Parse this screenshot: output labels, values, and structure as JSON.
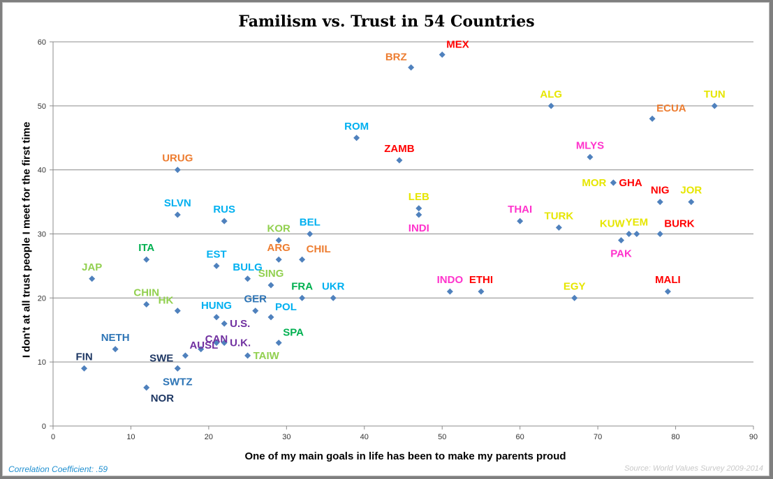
{
  "chart_data": {
    "type": "scatter",
    "title": "Familism vs. Trust in 54 Countries",
    "xlabel": "One of my main goals in life has been to make my parents proud",
    "ylabel": "I don't at all trust people I meet for the first time",
    "xlim": [
      0,
      90
    ],
    "ylim": [
      0,
      60
    ],
    "xticks": [
      0,
      10,
      20,
      30,
      40,
      50,
      60,
      70,
      80,
      90
    ],
    "yticks": [
      0,
      10,
      20,
      30,
      40,
      50,
      60
    ],
    "grid": "horizontal",
    "marker_color": "#4f81bd",
    "points": [
      {
        "label": "FIN",
        "x": 4,
        "y": 9,
        "color": "#1f3864",
        "pos": "above"
      },
      {
        "label": "NETH",
        "x": 8,
        "y": 12,
        "color": "#2e75b6",
        "pos": "above"
      },
      {
        "label": "NOR",
        "x": 12,
        "y": 6,
        "color": "#1f3864",
        "pos": "below-right"
      },
      {
        "label": "JAP",
        "x": 5,
        "y": 23,
        "color": "#92d050",
        "pos": "above"
      },
      {
        "label": "ITA",
        "x": 12,
        "y": 26,
        "color": "#00b050",
        "pos": "above"
      },
      {
        "label": "CHIN",
        "x": 12,
        "y": 19,
        "color": "#92d050",
        "pos": "above"
      },
      {
        "label": "HK",
        "x": 16,
        "y": 18,
        "color": "#92d050",
        "pos": "above-left"
      },
      {
        "label": "URUG",
        "x": 16,
        "y": 40,
        "color": "#ed7d31",
        "pos": "above"
      },
      {
        "label": "SLVN",
        "x": 16,
        "y": 33,
        "color": "#00b0f0",
        "pos": "above"
      },
      {
        "label": "SWE",
        "x": 16,
        "y": 9,
        "color": "#1f3864",
        "pos": "above-left"
      },
      {
        "label": "SWTZ",
        "x": 16,
        "y": 9,
        "color": "#2e75b6",
        "pos": "below"
      },
      {
        "label": "AUSL",
        "x": 17,
        "y": 11,
        "color": "#7030a0",
        "pos": "above-right"
      },
      {
        "label": "CAN",
        "x": 19,
        "y": 12,
        "color": "#7030a0",
        "pos": "above-right"
      },
      {
        "label": "HUNG",
        "x": 21,
        "y": 17,
        "color": "#00b0f0",
        "pos": "above"
      },
      {
        "label": "EST",
        "x": 21,
        "y": 25,
        "color": "#00b0f0",
        "pos": "above"
      },
      {
        "label": "RUS",
        "x": 22,
        "y": 32,
        "color": "#00b0f0",
        "pos": "above"
      },
      {
        "label": "U.S.",
        "x": 22,
        "y": 16,
        "color": "#7030a0",
        "pos": "right"
      },
      {
        "label": "U.K.",
        "x": 22,
        "y": 13,
        "color": "#7030a0",
        "pos": "right"
      },
      {
        "label": "",
        "x": 21,
        "y": 13,
        "color": "#4f81bd",
        "pos": "none"
      },
      {
        "label": "BULG",
        "x": 25,
        "y": 23,
        "color": "#00b0f0",
        "pos": "above"
      },
      {
        "label": "TAIW",
        "x": 25,
        "y": 11,
        "color": "#92d050",
        "pos": "right"
      },
      {
        "label": "GER",
        "x": 26,
        "y": 18,
        "color": "#2e75b6",
        "pos": "above"
      },
      {
        "label": "SING",
        "x": 28,
        "y": 22,
        "color": "#92d050",
        "pos": "above"
      },
      {
        "label": "POL",
        "x": 28,
        "y": 17,
        "color": "#00b0f0",
        "pos": "above-right"
      },
      {
        "label": "KOR",
        "x": 29,
        "y": 29,
        "color": "#92d050",
        "pos": "above"
      },
      {
        "label": "ARG",
        "x": 29,
        "y": 26,
        "color": "#ed7d31",
        "pos": "above"
      },
      {
        "label": "SPA",
        "x": 29,
        "y": 13,
        "color": "#00b050",
        "pos": "above-right"
      },
      {
        "label": "CHIL",
        "x": 32,
        "y": 26,
        "color": "#ed7d31",
        "pos": "above-right"
      },
      {
        "label": "FRA",
        "x": 32,
        "y": 20,
        "color": "#00b050",
        "pos": "above"
      },
      {
        "label": "BEL",
        "x": 33,
        "y": 30,
        "color": "#00b0f0",
        "pos": "above"
      },
      {
        "label": "UKR",
        "x": 36,
        "y": 20,
        "color": "#00b0f0",
        "pos": "above"
      },
      {
        "label": "ROM",
        "x": 39,
        "y": 45,
        "color": "#00b0f0",
        "pos": "above"
      },
      {
        "label": "ZAMB",
        "x": 44.5,
        "y": 41.5,
        "color": "#ff0000",
        "pos": "above"
      },
      {
        "label": "BRZ",
        "x": 46,
        "y": 56,
        "color": "#ed7d31",
        "pos": "above-left"
      },
      {
        "label": "LEB",
        "x": 47,
        "y": 34,
        "color": "#e6e600",
        "pos": "above"
      },
      {
        "label": "INDI",
        "x": 47,
        "y": 33,
        "color": "#ff33cc",
        "pos": "below"
      },
      {
        "label": "MEX",
        "x": 50,
        "y": 58,
        "color": "#ff0000",
        "pos": "above-right"
      },
      {
        "label": "INDO",
        "x": 51,
        "y": 21,
        "color": "#ff33cc",
        "pos": "above"
      },
      {
        "label": "ETHI",
        "x": 55,
        "y": 21,
        "color": "#ff0000",
        "pos": "above"
      },
      {
        "label": "THAI",
        "x": 60,
        "y": 32,
        "color": "#ff33cc",
        "pos": "above"
      },
      {
        "label": "ALG",
        "x": 64,
        "y": 50,
        "color": "#e6e600",
        "pos": "above"
      },
      {
        "label": "TURK",
        "x": 65,
        "y": 31,
        "color": "#e6e600",
        "pos": "above"
      },
      {
        "label": "EGY",
        "x": 67,
        "y": 20,
        "color": "#e6e600",
        "pos": "above"
      },
      {
        "label": "MLYS",
        "x": 69,
        "y": 42,
        "color": "#ff33cc",
        "pos": "above"
      },
      {
        "label": "MOR",
        "x": 72,
        "y": 38,
        "color": "#e6e600",
        "pos": "left"
      },
      {
        "label": "GHA",
        "x": 72,
        "y": 38,
        "color": "#ff0000",
        "pos": "right"
      },
      {
        "label": "PAK",
        "x": 73,
        "y": 29,
        "color": "#ff33cc",
        "pos": "below"
      },
      {
        "label": "KUW",
        "x": 74,
        "y": 30,
        "color": "#e6e600",
        "pos": "above-left"
      },
      {
        "label": "YEM",
        "x": 75,
        "y": 30,
        "color": "#e6e600",
        "pos": "above"
      },
      {
        "label": "ECUA",
        "x": 77,
        "y": 48,
        "color": "#ed7d31",
        "pos": "above-right"
      },
      {
        "label": "NIG",
        "x": 78,
        "y": 35,
        "color": "#ff0000",
        "pos": "above"
      },
      {
        "label": "BURK",
        "x": 78,
        "y": 30,
        "color": "#ff0000",
        "pos": "above-right"
      },
      {
        "label": "MALI",
        "x": 79,
        "y": 21,
        "color": "#ff0000",
        "pos": "above"
      },
      {
        "label": "JOR",
        "x": 82,
        "y": 35,
        "color": "#e6e600",
        "pos": "above"
      },
      {
        "label": "TUN",
        "x": 85,
        "y": 50,
        "color": "#e6e600",
        "pos": "above"
      }
    ]
  },
  "footer": {
    "correlation": "Correlation Coefficient: .59",
    "source": "Source: World Values Survey 2009-2014"
  }
}
